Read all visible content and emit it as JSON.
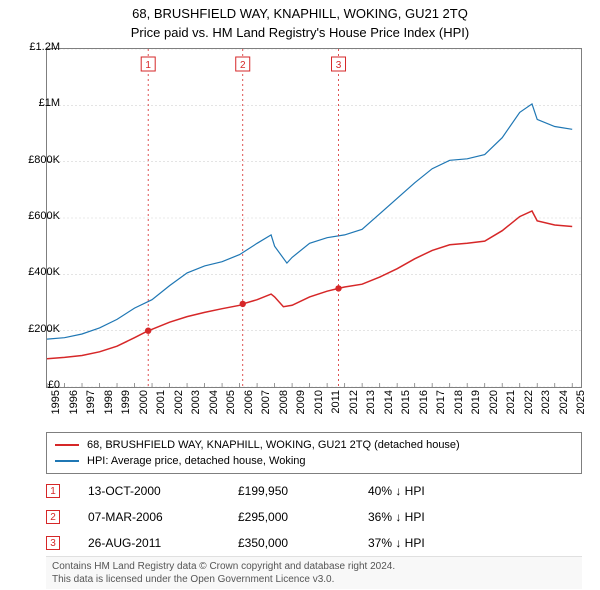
{
  "title": {
    "line1": "68, BRUSHFIELD WAY, KNAPHILL, WOKING, GU21 2TQ",
    "line2": "Price paid vs. HM Land Registry's House Price Index (HPI)"
  },
  "chart": {
    "type": "line",
    "background_color": "#ffffff",
    "border_color": "#7f7f7f",
    "grid_color": "#d4d4d4",
    "xlim": [
      1995,
      2025.5
    ],
    "ylim": [
      0,
      1200000
    ],
    "ytick_step": 200000,
    "y_ticks": [
      {
        "v": 0,
        "label": "£0"
      },
      {
        "v": 200000,
        "label": "£200K"
      },
      {
        "v": 400000,
        "label": "£400K"
      },
      {
        "v": 600000,
        "label": "£600K"
      },
      {
        "v": 800000,
        "label": "£800K"
      },
      {
        "v": 1000000,
        "label": "£1M"
      },
      {
        "v": 1200000,
        "label": "£1.2M"
      }
    ],
    "x_ticks": [
      1995,
      1996,
      1997,
      1998,
      1999,
      2000,
      2001,
      2002,
      2003,
      2004,
      2005,
      2006,
      2007,
      2008,
      2009,
      2010,
      2011,
      2012,
      2013,
      2014,
      2015,
      2016,
      2017,
      2018,
      2019,
      2020,
      2021,
      2022,
      2023,
      2024,
      2025
    ],
    "series": [
      {
        "name": "property",
        "label": "68, BRUSHFIELD WAY, KNAPHILL, WOKING, GU21 2TQ (detached house)",
        "color": "#d62728",
        "line_width": 1.5,
        "points": [
          [
            1995,
            100000
          ],
          [
            1996,
            105000
          ],
          [
            1997,
            112000
          ],
          [
            1998,
            125000
          ],
          [
            1999,
            145000
          ],
          [
            2000,
            175000
          ],
          [
            2000.78,
            199950
          ],
          [
            2001,
            205000
          ],
          [
            2002,
            230000
          ],
          [
            2003,
            250000
          ],
          [
            2004,
            265000
          ],
          [
            2005,
            278000
          ],
          [
            2006,
            290000
          ],
          [
            2006.18,
            295000
          ],
          [
            2007,
            310000
          ],
          [
            2007.8,
            330000
          ],
          [
            2008,
            320000
          ],
          [
            2008.5,
            285000
          ],
          [
            2009,
            290000
          ],
          [
            2010,
            320000
          ],
          [
            2011,
            340000
          ],
          [
            2011.65,
            350000
          ],
          [
            2012,
            355000
          ],
          [
            2013,
            365000
          ],
          [
            2014,
            390000
          ],
          [
            2015,
            420000
          ],
          [
            2016,
            455000
          ],
          [
            2017,
            485000
          ],
          [
            2018,
            505000
          ],
          [
            2019,
            510000
          ],
          [
            2020,
            518000
          ],
          [
            2021,
            555000
          ],
          [
            2022,
            605000
          ],
          [
            2022.7,
            625000
          ],
          [
            2023,
            590000
          ],
          [
            2024,
            575000
          ],
          [
            2025,
            570000
          ]
        ]
      },
      {
        "name": "hpi",
        "label": "HPI: Average price, detached house, Woking",
        "color": "#1f77b4",
        "line_width": 1.2,
        "points": [
          [
            1995,
            170000
          ],
          [
            1996,
            175000
          ],
          [
            1997,
            188000
          ],
          [
            1998,
            210000
          ],
          [
            1999,
            240000
          ],
          [
            2000,
            280000
          ],
          [
            2001,
            310000
          ],
          [
            2002,
            360000
          ],
          [
            2003,
            405000
          ],
          [
            2004,
            430000
          ],
          [
            2005,
            445000
          ],
          [
            2006,
            470000
          ],
          [
            2007,
            510000
          ],
          [
            2007.8,
            540000
          ],
          [
            2008,
            500000
          ],
          [
            2008.7,
            440000
          ],
          [
            2009,
            460000
          ],
          [
            2010,
            510000
          ],
          [
            2011,
            530000
          ],
          [
            2012,
            540000
          ],
          [
            2013,
            560000
          ],
          [
            2014,
            615000
          ],
          [
            2015,
            670000
          ],
          [
            2016,
            725000
          ],
          [
            2017,
            775000
          ],
          [
            2018,
            805000
          ],
          [
            2019,
            810000
          ],
          [
            2020,
            825000
          ],
          [
            2021,
            885000
          ],
          [
            2022,
            975000
          ],
          [
            2022.7,
            1005000
          ],
          [
            2023,
            950000
          ],
          [
            2024,
            925000
          ],
          [
            2025,
            915000
          ]
        ]
      }
    ],
    "markers": [
      {
        "n": "1",
        "x": 2000.78,
        "y": 199950,
        "date": "13-OCT-2000",
        "price": "£199,950",
        "delta": "40% ↓ HPI"
      },
      {
        "n": "2",
        "x": 2006.18,
        "y": 295000,
        "date": "07-MAR-2006",
        "price": "£295,000",
        "delta": "36% ↓ HPI"
      },
      {
        "n": "3",
        "x": 2011.65,
        "y": 350000,
        "date": "26-AUG-2011",
        "price": "£350,000",
        "delta": "37% ↓ HPI"
      }
    ],
    "marker_box_color": "#d62728",
    "marker_line_color": "#d62728",
    "marker_dot_fill": "#d62728",
    "marker_dash": "2,3"
  },
  "footer": {
    "line1": "Contains HM Land Registry data © Crown copyright and database right 2024.",
    "line2": "This data is licensed under the Open Government Licence v3.0."
  }
}
